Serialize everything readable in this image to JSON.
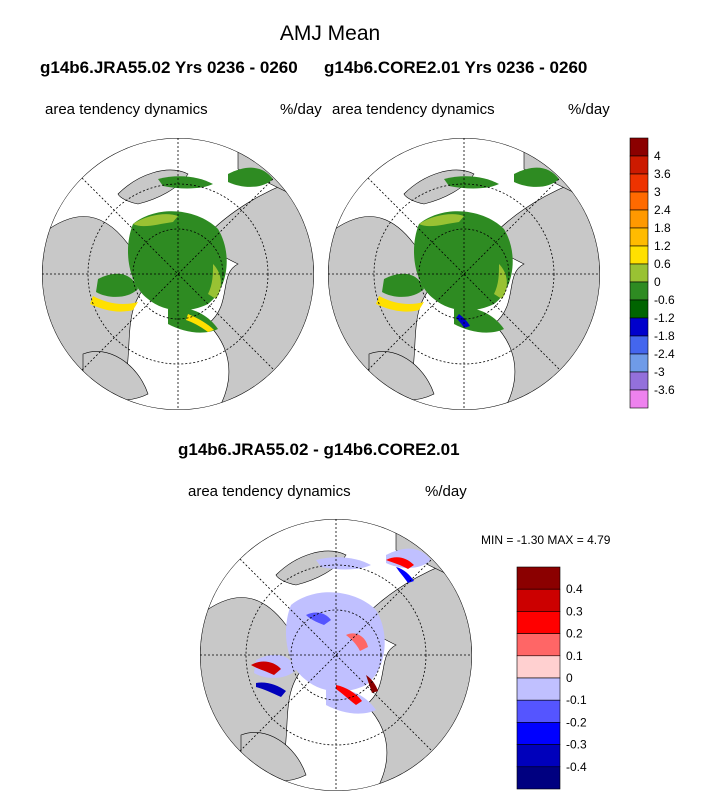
{
  "main_title": "AMJ Mean",
  "panel_left": {
    "case_title": "g14b6.JRA55.02  Yrs 0236 - 0260",
    "variable": "area tendency dynamics",
    "units": "%/day"
  },
  "panel_right": {
    "case_title": "g14b6.CORE2.01  Yrs 0236 - 0260",
    "variable": "area tendency dynamics",
    "units": "%/day"
  },
  "panel_diff": {
    "case_title": "g14b6.JRA55.02 - g14b6.CORE2.01",
    "variable": "area tendency dynamics",
    "units": "%/day",
    "min_label": "MIN =",
    "min_value": "-1.30",
    "max_label": "MAX =",
    "max_value": "4.79"
  },
  "colors": {
    "land": "#c8c8c8",
    "ocean": "#ffffff"
  },
  "chart_data": [
    {
      "type": "heatmap",
      "projection": "north-polar-stereographic",
      "colorbar": {
        "ticks": [
          "4",
          "3.6",
          "3",
          "2.4",
          "1.8",
          "1.2",
          "0.6",
          "0",
          "-0.6",
          "-1.2",
          "-1.8",
          "-2.4",
          "-3",
          "-3.6"
        ],
        "colors": [
          "#8b0000",
          "#cc1a00",
          "#ee3300",
          "#ff6a00",
          "#ff9900",
          "#ffbb00",
          "#ffe000",
          "#99c233",
          "#2e8b22",
          "#006400",
          "#0000cc",
          "#4466ee",
          "#6f9be8",
          "#9370db",
          "#ee82ee"
        ]
      }
    },
    {
      "type": "heatmap",
      "projection": "north-polar-stereographic",
      "colorbar": {
        "ticks": [
          "0.4",
          "0.3",
          "0.2",
          "0.1",
          "0",
          "-0.1",
          "-0.2",
          "-0.3",
          "-0.4"
        ],
        "colors": [
          "#8b0000",
          "#cc0000",
          "#ff0000",
          "#ff6666",
          "#ffd0d0",
          "#c0c0ff",
          "#5555ff",
          "#0000ff",
          "#0000bb",
          "#000080"
        ]
      }
    }
  ]
}
